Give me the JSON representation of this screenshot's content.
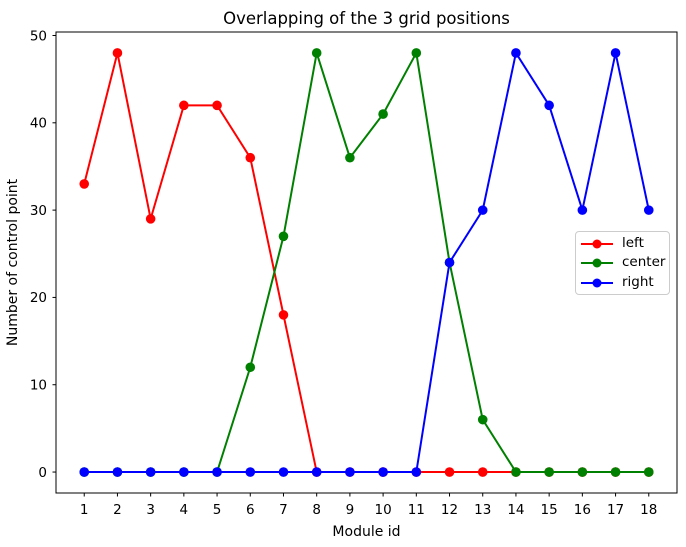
{
  "chart_data": {
    "type": "line",
    "title": "Overlapping of the 3 grid positions",
    "xlabel": "Module id",
    "ylabel": "Number of control point",
    "x": [
      1,
      2,
      3,
      4,
      5,
      6,
      7,
      8,
      9,
      10,
      11,
      12,
      13,
      14,
      15,
      16,
      17,
      18
    ],
    "series": [
      {
        "name": "left",
        "color": "#ff0000",
        "values": [
          33,
          48,
          29,
          42,
          42,
          36,
          18,
          0,
          0,
          0,
          0,
          0,
          0,
          0,
          0,
          0,
          0,
          0
        ]
      },
      {
        "name": "center",
        "color": "#008000",
        "values": [
          0,
          0,
          0,
          0,
          0,
          12,
          27,
          48,
          36,
          41,
          48,
          24,
          6,
          0,
          0,
          0,
          0,
          0
        ]
      },
      {
        "name": "right",
        "color": "#0000ff",
        "values": [
          0,
          0,
          0,
          0,
          0,
          0,
          0,
          0,
          0,
          0,
          0,
          24,
          30,
          48,
          42,
          30,
          48,
          30
        ]
      }
    ],
    "xticks": [
      1,
      2,
      3,
      4,
      5,
      6,
      7,
      8,
      9,
      10,
      11,
      12,
      13,
      14,
      15,
      16,
      17,
      18
    ],
    "yticks": [
      0,
      10,
      20,
      30,
      40,
      50
    ],
    "xlim": [
      0.15,
      18.85
    ],
    "ylim": [
      -2.4,
      50.4
    ],
    "grid": false,
    "marker": "o",
    "legend_position": "center right",
    "legend_entries": [
      "left",
      "center",
      "right"
    ],
    "axis_color": "#000000",
    "background_color": "#ffffff"
  }
}
